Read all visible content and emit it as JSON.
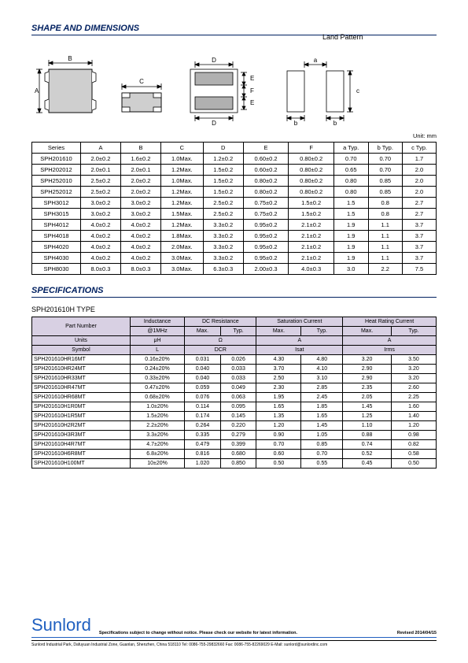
{
  "titles": {
    "shape": "SHAPE AND DIMENSIONS",
    "specs": "SPECIFICATIONS",
    "land_pattern": "Land Pattern",
    "unit": "Unit: mm",
    "type": "SPH201610H TYPE"
  },
  "dim_headers": [
    "Series",
    "A",
    "B",
    "C",
    "D",
    "E",
    "F",
    "a Typ.",
    "b Typ.",
    "c Typ."
  ],
  "dim_rows": [
    [
      "SPH201610",
      "2.0±0.2",
      "1.6±0.2",
      "1.0Max.",
      "1.2±0.2",
      "0.60±0.2",
      "0.80±0.2",
      "0.70",
      "0.70",
      "1.7"
    ],
    [
      "SPH202012",
      "2.0±0.1",
      "2.0±0.1",
      "1.2Max.",
      "1.5±0.2",
      "0.60±0.2",
      "0.80±0.2",
      "0.65",
      "0.70",
      "2.0"
    ],
    [
      "SPH252010",
      "2.5±0.2",
      "2.0±0.2",
      "1.0Max.",
      "1.5±0.2",
      "0.80±0.2",
      "0.80±0.2",
      "0.80",
      "0.85",
      "2.0"
    ],
    [
      "SPH252012",
      "2.5±0.2",
      "2.0±0.2",
      "1.2Max.",
      "1.5±0.2",
      "0.80±0.2",
      "0.80±0.2",
      "0.80",
      "0.85",
      "2.0"
    ],
    [
      "SPH3012",
      "3.0±0.2",
      "3.0±0.2",
      "1.2Max.",
      "2.5±0.2",
      "0.75±0.2",
      "1.5±0.2",
      "1.5",
      "0.8",
      "2.7"
    ],
    [
      "SPH3015",
      "3.0±0.2",
      "3.0±0.2",
      "1.5Max.",
      "2.5±0.2",
      "0.75±0.2",
      "1.5±0.2",
      "1.5",
      "0.8",
      "2.7"
    ],
    [
      "SPH4012",
      "4.0±0.2",
      "4.0±0.2",
      "1.2Max.",
      "3.3±0.2",
      "0.95±0.2",
      "2.1±0.2",
      "1.9",
      "1.1",
      "3.7"
    ],
    [
      "SPH4018",
      "4.0±0.2",
      "4.0±0.2",
      "1.8Max.",
      "3.3±0.2",
      "0.95±0.2",
      "2.1±0.2",
      "1.9",
      "1.1",
      "3.7"
    ],
    [
      "SPH4020",
      "4.0±0.2",
      "4.0±0.2",
      "2.0Max.",
      "3.3±0.2",
      "0.95±0.2",
      "2.1±0.2",
      "1.9",
      "1.1",
      "3.7"
    ],
    [
      "SPH4030",
      "4.0±0.2",
      "4.0±0.2",
      "3.0Max.",
      "3.3±0.2",
      "0.95±0.2",
      "2.1±0.2",
      "1.9",
      "1.1",
      "3.7"
    ],
    [
      "SPH8030",
      "8.0±0.3",
      "8.0±0.3",
      "3.0Max.",
      "6.3±0.3",
      "2.00±0.3",
      "4.0±0.3",
      "3.0",
      "2.2",
      "7.5"
    ]
  ],
  "spec_head1": [
    "Part Number",
    "Inductance",
    "DC Resistance",
    "",
    "Saturation Current",
    "",
    "Heat Rating Current",
    ""
  ],
  "spec_head2": [
    "",
    "@1MHz",
    "Max.",
    "Typ.",
    "Max.",
    "Typ.",
    "Max.",
    "Typ."
  ],
  "spec_head3": [
    "Units",
    "μH",
    "Ω",
    "",
    "A",
    "",
    "A",
    ""
  ],
  "spec_head4": [
    "Symbol",
    "L",
    "DCR",
    "",
    "Isat",
    "",
    "Irms",
    ""
  ],
  "spec_rows": [
    [
      "SPH201610HR16MT",
      "0.16±20%",
      "0.031",
      "0.026",
      "4.30",
      "4.80",
      "3.20",
      "3.50"
    ],
    [
      "SPH201610HR24MT",
      "0.24±20%",
      "0.040",
      "0.033",
      "3.70",
      "4.10",
      "2.90",
      "3.20"
    ],
    [
      "SPH201610HR33MT",
      "0.33±20%",
      "0.040",
      "0.033",
      "2.50",
      "3.10",
      "2.90",
      "3.20"
    ],
    [
      "SPH201610HR47MT",
      "0.47±20%",
      "0.059",
      "0.049",
      "2.30",
      "2.85",
      "2.35",
      "2.60"
    ],
    [
      "SPH201610HR68MT",
      "0.68±20%",
      "0.076",
      "0.063",
      "1.95",
      "2.45",
      "2.05",
      "2.25"
    ],
    [
      "SPH201610H1R0MT",
      "1.0±20%",
      "0.114",
      "0.095",
      "1.65",
      "1.85",
      "1.45",
      "1.60"
    ],
    [
      "SPH201610H1R5MT",
      "1.5±20%",
      "0.174",
      "0.145",
      "1.35",
      "1.65",
      "1.25",
      "1.40"
    ],
    [
      "SPH201610H2R2MT",
      "2.2±20%",
      "0.264",
      "0.220",
      "1.20",
      "1.45",
      "1.10",
      "1.20"
    ],
    [
      "SPH201610H3R3MT",
      "3.3±20%",
      "0.335",
      "0.279",
      "0.90",
      "1.05",
      "0.88",
      "0.98"
    ],
    [
      "SPH201610H4R7MT",
      "4.7±20%",
      "0.479",
      "0.399",
      "0.70",
      "0.85",
      "0.74",
      "0.82"
    ],
    [
      "SPH201610H6R8MT",
      "6.8±20%",
      "0.816",
      "0.680",
      "0.60",
      "0.70",
      "0.52",
      "0.58"
    ],
    [
      "SPH201610H100MT",
      "10±20%",
      "1.020",
      "0.850",
      "0.50",
      "0.55",
      "0.45",
      "0.50"
    ]
  ],
  "footer": {
    "brand": "Sunlord",
    "note": "Specifications subject to change without notice. Please check our website for latest information.",
    "rev": "Revised 2014/04/15",
    "addr": "Sunlord Industrial Park, Dafuyuan Industrial Zone, Guanlan, Shenzhen, China 518110 Tel: 0086-755-29832660 Fax: 0086-755-82269029 E-Mail: sunlord@sunlordinc.com"
  }
}
